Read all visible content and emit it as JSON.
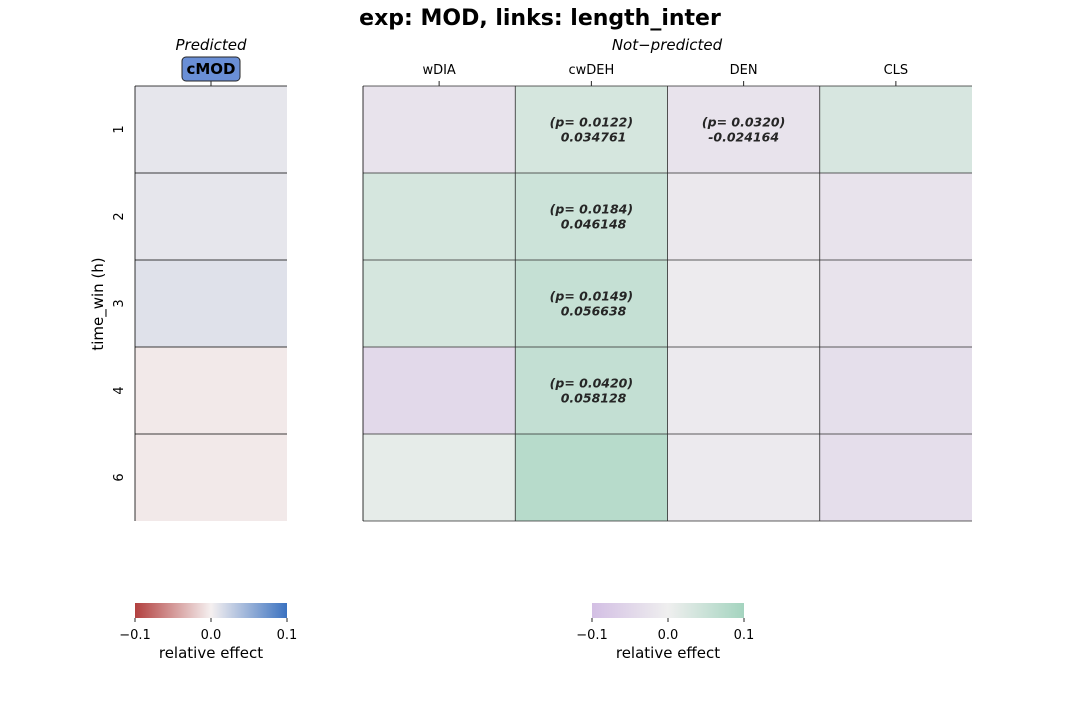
{
  "chart_data": {
    "type": "heatmap",
    "title": "exp: MOD, links: length_inter",
    "ylabel": "time_win (h)",
    "row_labels": [
      "1",
      "2",
      "3",
      "4",
      "6"
    ],
    "panels": [
      {
        "subtitle": "Predicted",
        "columns": [
          "cMOD"
        ],
        "highlight_column": "cMOD",
        "colormap": [
          "#b2403f",
          "#f5f0f0",
          "#3b72c0"
        ],
        "values": [
          [
            0.008
          ],
          [
            0.008
          ],
          [
            0.012
          ],
          [
            -0.004
          ],
          [
            -0.004
          ]
        ],
        "annotations": [
          [
            ""
          ],
          [
            ""
          ],
          [
            ""
          ],
          [
            ""
          ],
          [
            ""
          ]
        ],
        "colorbar": {
          "label": "relative effect",
          "ticks": [
            "−0.1",
            "0.0",
            "0.1"
          ],
          "range": [
            -0.1,
            0.1
          ]
        }
      },
      {
        "subtitle": "Not−predicted",
        "columns": [
          "wDIA",
          "cwDEH",
          "DEN",
          "CLS"
        ],
        "colormap": [
          "#d3bfe4",
          "#efefef",
          "#a4d4bf"
        ],
        "values": [
          [
            -0.024,
            0.034761,
            -0.024164,
            0.032
          ],
          [
            0.035,
            0.046148,
            -0.015,
            -0.026
          ],
          [
            0.035,
            0.056638,
            -0.008,
            -0.026
          ],
          [
            -0.045,
            0.058128,
            -0.01,
            -0.034
          ],
          [
            0.012,
            0.075,
            -0.01,
            -0.036
          ]
        ],
        "annotations": [
          [
            "",
            "(p= 0.0122)\n 0.034761",
            "(p= 0.0320)\n-0.024164",
            ""
          ],
          [
            "",
            "(p= 0.0184)\n 0.046148",
            "",
            ""
          ],
          [
            "",
            "(p= 0.0149)\n 0.056638",
            "",
            ""
          ],
          [
            "",
            "(p= 0.0420)\n 0.058128",
            "",
            ""
          ],
          [
            "",
            "",
            "",
            ""
          ]
        ],
        "colorbar": {
          "label": "relative effect",
          "ticks": [
            "−0.1",
            "0.0",
            "0.1"
          ],
          "range": [
            -0.1,
            0.1
          ]
        }
      }
    ]
  }
}
